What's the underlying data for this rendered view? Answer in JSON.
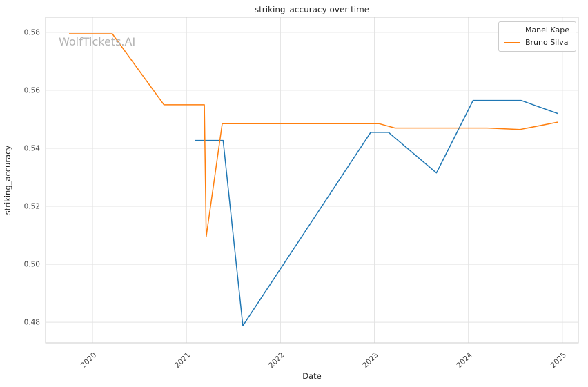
{
  "chart_data": {
    "type": "line",
    "title": "striking_accuracy over time",
    "xlabel": "Date",
    "ylabel": "striking_accuracy",
    "watermark": "WolfTickets.AI",
    "grid": true,
    "legend_position": "upper right",
    "xlim": [
      2019.5,
      2025.17
    ],
    "ylim": [
      0.4729,
      0.5852
    ],
    "x_ticks": [
      2020,
      2021,
      2022,
      2023,
      2024,
      2025
    ],
    "x_tick_labels": [
      "2020",
      "2021",
      "2022",
      "2023",
      "2024",
      "2025"
    ],
    "y_ticks": [
      0.48,
      0.5,
      0.52,
      0.54,
      0.56,
      0.58
    ],
    "y_tick_labels": [
      "0.48",
      "0.50",
      "0.52",
      "0.54",
      "0.56",
      "0.58"
    ],
    "series": [
      {
        "name": "Manel Kape",
        "color": "#1f77b4",
        "x": [
          2021.09,
          2021.39,
          2021.6,
          2022.96,
          2023.15,
          2023.66,
          2024.05,
          2024.56,
          2024.95
        ],
        "y": [
          0.5427,
          0.5427,
          0.4788,
          0.5455,
          0.5455,
          0.5315,
          0.5565,
          0.5565,
          0.552
        ]
      },
      {
        "name": "Bruno Silva",
        "color": "#ff7f0e",
        "x": [
          2019.75,
          2020.21,
          2020.76,
          2021.19,
          2021.21,
          2021.38,
          2023.05,
          2023.22,
          2024.2,
          2024.55,
          2024.95
        ],
        "y": [
          0.5795,
          0.5795,
          0.555,
          0.555,
          0.5095,
          0.5485,
          0.5485,
          0.547,
          0.547,
          0.5465,
          0.549
        ]
      }
    ]
  }
}
